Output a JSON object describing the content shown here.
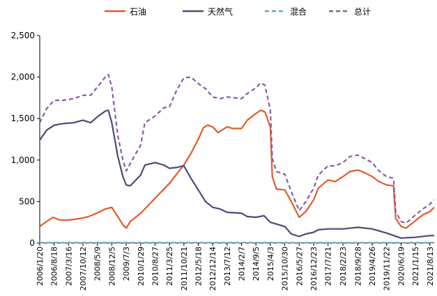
{
  "chart_data": {
    "type": "line",
    "title": "",
    "xlabel": "",
    "ylabel": "",
    "ylim": [
      0,
      2500
    ],
    "yticks": [
      0,
      500,
      1000,
      1500,
      2000,
      2500
    ],
    "ytick_labels": [
      "0",
      "500",
      "1,000",
      "1,500",
      "2,000",
      "2,500"
    ],
    "grid": false,
    "legend_position": "top-center",
    "x_start": "2006/1/20",
    "x_end": "2021/10/15",
    "x_ticks": [
      "2006/1/20",
      "2006/8/18",
      "2007/3/16",
      "2007/10/12",
      "2008/5/9",
      "2008/12/5",
      "2009/7/3",
      "2010/1/29",
      "2010/8/27",
      "2011/3/25",
      "2011/10/21",
      "2012/5/18",
      "2012/12/14",
      "2013/7/12",
      "2014/2/7",
      "2014/9/5",
      "2015/4/3",
      "2015/10/30",
      "2016/5/27",
      "2016/12/23",
      "2017/7/21",
      "2018/2/23",
      "2018/9/28",
      "2019/4/26",
      "2019/11/22",
      "2020/6/19",
      "2021/1/15",
      "2021/8/13"
    ],
    "series": [
      {
        "name": "石油",
        "color": "#E05A2B",
        "style": "solid",
        "points": [
          [
            "2006/1/20",
            200
          ],
          [
            "2006/5/1",
            260
          ],
          [
            "2006/8/1",
            310
          ],
          [
            "2006/11/1",
            280
          ],
          [
            "2007/3/1",
            275
          ],
          [
            "2007/6/1",
            285
          ],
          [
            "2007/10/1",
            300
          ],
          [
            "2008/1/1",
            320
          ],
          [
            "2008/5/1",
            360
          ],
          [
            "2008/9/1",
            410
          ],
          [
            "2008/12/5",
            430
          ],
          [
            "2009/3/1",
            320
          ],
          [
            "2009/5/15",
            220
          ],
          [
            "2009/7/3",
            180
          ],
          [
            "2009/9/1",
            260
          ],
          [
            "2010/1/29",
            360
          ],
          [
            "2010/8/27",
            540
          ],
          [
            "2011/3/25",
            720
          ],
          [
            "2011/10/21",
            940
          ],
          [
            "2012/2/1",
            1080
          ],
          [
            "2012/5/18",
            1250
          ],
          [
            "2012/8/1",
            1390
          ],
          [
            "2012/10/1",
            1420
          ],
          [
            "2012/12/14",
            1400
          ],
          [
            "2013/3/1",
            1330
          ],
          [
            "2013/7/12",
            1400
          ],
          [
            "2013/10/1",
            1380
          ],
          [
            "2014/2/7",
            1380
          ],
          [
            "2014/5/1",
            1480
          ],
          [
            "2014/9/5",
            1560
          ],
          [
            "2014/11/15",
            1600
          ],
          [
            "2015/1/15",
            1580
          ],
          [
            "2015/4/3",
            1400
          ],
          [
            "2015/5/1",
            800
          ],
          [
            "2015/7/1",
            650
          ],
          [
            "2015/10/30",
            640
          ],
          [
            "2016/2/1",
            500
          ],
          [
            "2016/5/27",
            310
          ],
          [
            "2016/9/1",
            380
          ],
          [
            "2016/12/23",
            520
          ],
          [
            "2017/3/1",
            660
          ],
          [
            "2017/7/21",
            760
          ],
          [
            "2017/11/1",
            740
          ],
          [
            "2018/2/23",
            800
          ],
          [
            "2018/6/1",
            860
          ],
          [
            "2018/9/28",
            880
          ],
          [
            "2019/1/1",
            850
          ],
          [
            "2019/4/26",
            800
          ],
          [
            "2019/8/1",
            740
          ],
          [
            "2019/11/22",
            700
          ],
          [
            "2020/3/1",
            690
          ],
          [
            "2020/4/1",
            300
          ],
          [
            "2020/6/19",
            200
          ],
          [
            "2020/9/1",
            180
          ],
          [
            "2021/1/15",
            270
          ],
          [
            "2021/5/1",
            340
          ],
          [
            "2021/8/13",
            380
          ],
          [
            "2021/10/15",
            430
          ]
        ]
      },
      {
        "name": "天然气",
        "color": "#4A4A7A",
        "style": "solid",
        "points": [
          [
            "2006/1/20",
            1240
          ],
          [
            "2006/5/1",
            1360
          ],
          [
            "2006/8/18",
            1420
          ],
          [
            "2007/1/1",
            1440
          ],
          [
            "2007/6/1",
            1450
          ],
          [
            "2007/10/12",
            1480
          ],
          [
            "2008/2/1",
            1450
          ],
          [
            "2008/5/9",
            1520
          ],
          [
            "2008/9/1",
            1590
          ],
          [
            "2008/10/15",
            1600
          ],
          [
            "2008/12/5",
            1450
          ],
          [
            "2009/3/1",
            1050
          ],
          [
            "2009/5/15",
            800
          ],
          [
            "2009/7/3",
            700
          ],
          [
            "2009/9/1",
            690
          ],
          [
            "2010/1/29",
            820
          ],
          [
            "2010/4/1",
            940
          ],
          [
            "2010/8/27",
            970
          ],
          [
            "2011/1/1",
            940
          ],
          [
            "2011/3/25",
            900
          ],
          [
            "2011/7/1",
            910
          ],
          [
            "2011/10/21",
            930
          ],
          [
            "2012/2/1",
            780
          ],
          [
            "2012/5/18",
            640
          ],
          [
            "2012/9/1",
            500
          ],
          [
            "2012/12/14",
            430
          ],
          [
            "2013/4/1",
            410
          ],
          [
            "2013/7/12",
            370
          ],
          [
            "2014/2/7",
            360
          ],
          [
            "2014/5/1",
            320
          ],
          [
            "2014/9/5",
            310
          ],
          [
            "2015/1/1",
            330
          ],
          [
            "2015/4/3",
            250
          ],
          [
            "2015/10/30",
            200
          ],
          [
            "2016/2/1",
            110
          ],
          [
            "2016/5/27",
            80
          ],
          [
            "2016/9/1",
            110
          ],
          [
            "2016/12/23",
            130
          ],
          [
            "2017/3/1",
            160
          ],
          [
            "2017/7/21",
            170
          ],
          [
            "2018/2/23",
            170
          ],
          [
            "2018/9/28",
            190
          ],
          [
            "2019/4/26",
            170
          ],
          [
            "2019/11/22",
            120
          ],
          [
            "2020/6/19",
            60
          ],
          [
            "2021/1/15",
            70
          ],
          [
            "2021/8/13",
            90
          ],
          [
            "2021/10/15",
            90
          ]
        ]
      },
      {
        "name": "混合",
        "color": "#5FA8C8",
        "style": "dashed",
        "points": [
          [
            "2006/1/20",
            5
          ],
          [
            "2009/1/1",
            6
          ],
          [
            "2012/1/1",
            5
          ],
          [
            "2015/1/1",
            5
          ],
          [
            "2018/1/1",
            4
          ],
          [
            "2021/10/15",
            4
          ]
        ]
      },
      {
        "name": "总计",
        "color": "#8B5BA6",
        "style": "dashed",
        "points": [
          [
            "2006/1/20",
            1450
          ],
          [
            "2006/5/1",
            1620
          ],
          [
            "2006/8/18",
            1720
          ],
          [
            "2007/1/1",
            1720
          ],
          [
            "2007/6/1",
            1740
          ],
          [
            "2007/10/12",
            1780
          ],
          [
            "2008/2/1",
            1780
          ],
          [
            "2008/5/9",
            1880
          ],
          [
            "2008/9/1",
            2000
          ],
          [
            "2008/10/15",
            2030
          ],
          [
            "2008/12/5",
            1880
          ],
          [
            "2009/3/1",
            1300
          ],
          [
            "2009/5/15",
            1000
          ],
          [
            "2009/7/3",
            870
          ],
          [
            "2009/9/1",
            960
          ],
          [
            "2010/1/29",
            1180
          ],
          [
            "2010/4/1",
            1450
          ],
          [
            "2010/8/27",
            1530
          ],
          [
            "2011/1/1",
            1630
          ],
          [
            "2011/3/25",
            1640
          ],
          [
            "2011/7/1",
            1830
          ],
          [
            "2011/10/21",
            1990
          ],
          [
            "2012/2/1",
            2000
          ],
          [
            "2012/5/18",
            1920
          ],
          [
            "2012/9/1",
            1860
          ],
          [
            "2012/12/14",
            1760
          ],
          [
            "2013/4/1",
            1740
          ],
          [
            "2013/7/12",
            1760
          ],
          [
            "2014/2/7",
            1740
          ],
          [
            "2014/5/1",
            1800
          ],
          [
            "2014/9/5",
            1870
          ],
          [
            "2014/11/15",
            1930
          ],
          [
            "2015/1/15",
            1900
          ],
          [
            "2015/4/3",
            1600
          ],
          [
            "2015/5/1",
            1020
          ],
          [
            "2015/7/1",
            860
          ],
          [
            "2015/10/30",
            830
          ],
          [
            "2016/2/1",
            620
          ],
          [
            "2016/5/27",
            390
          ],
          [
            "2016/9/1",
            500
          ],
          [
            "2016/12/23",
            660
          ],
          [
            "2017/3/1",
            820
          ],
          [
            "2017/7/21",
            930
          ],
          [
            "2017/11/1",
            930
          ],
          [
            "2018/2/23",
            970
          ],
          [
            "2018/6/1",
            1040
          ],
          [
            "2018/9/28",
            1060
          ],
          [
            "2019/1/1",
            1020
          ],
          [
            "2019/4/26",
            970
          ],
          [
            "2019/8/1",
            870
          ],
          [
            "2019/11/22",
            800
          ],
          [
            "2020/3/1",
            780
          ],
          [
            "2020/4/1",
            380
          ],
          [
            "2020/6/19",
            260
          ],
          [
            "2020/9/1",
            240
          ],
          [
            "2021/1/15",
            340
          ],
          [
            "2021/5/1",
            410
          ],
          [
            "2021/8/13",
            470
          ],
          [
            "2021/10/15",
            520
          ]
        ]
      }
    ]
  }
}
